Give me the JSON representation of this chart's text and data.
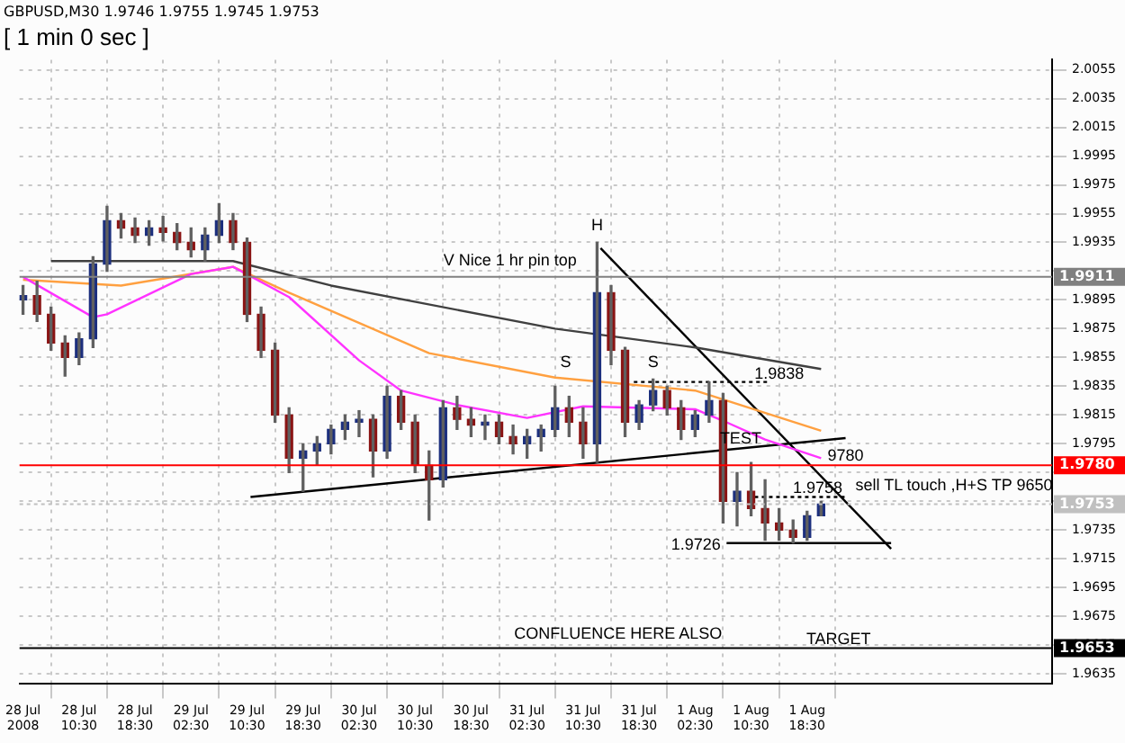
{
  "chart_data": {
    "type": "candlestick",
    "title": "GBPUSD,M30 1.9746 1.9755 1.9745 1.9753",
    "subtitle": "[ 1 min 0 sec ]",
    "x": [
      "2008-07-28T02:30",
      "2008-07-28T04:30",
      "2008-07-28T06:30",
      "2008-07-28T08:30",
      "2008-07-28T10:30",
      "2008-07-28T12:30",
      "2008-07-28T14:30",
      "2008-07-28T16:30",
      "2008-07-28T18:30",
      "2008-07-28T20:30",
      "2008-07-28T22:30",
      "2008-07-29T00:30",
      "2008-07-29T02:30",
      "2008-07-29T04:30",
      "2008-07-29T06:30",
      "2008-07-29T08:30",
      "2008-07-29T10:30",
      "2008-07-29T12:30",
      "2008-07-29T14:30",
      "2008-07-29T16:30",
      "2008-07-29T18:30",
      "2008-07-29T20:30",
      "2008-07-29T22:30",
      "2008-07-30T00:30",
      "2008-07-30T02:30",
      "2008-07-30T04:30",
      "2008-07-30T06:30",
      "2008-07-30T08:30",
      "2008-07-30T10:30",
      "2008-07-30T12:30",
      "2008-07-30T14:30",
      "2008-07-30T16:30",
      "2008-07-30T18:30",
      "2008-07-30T20:30",
      "2008-07-30T22:30",
      "2008-07-31T00:30",
      "2008-07-31T02:30",
      "2008-07-31T04:30",
      "2008-07-31T06:30",
      "2008-07-31T08:30",
      "2008-07-31T10:30",
      "2008-07-31T12:30",
      "2008-07-31T14:30",
      "2008-07-31T16:30",
      "2008-07-31T18:30",
      "2008-07-31T20:30",
      "2008-07-31T22:30",
      "2008-08-01T00:30",
      "2008-08-01T02:30",
      "2008-08-01T04:30",
      "2008-08-01T06:30",
      "2008-08-01T08:30",
      "2008-08-01T10:30",
      "2008-08-01T12:30",
      "2008-08-01T14:30",
      "2008-08-01T16:30",
      "2008-08-01T18:30",
      "2008-08-01T20:30"
    ],
    "ohlc": [
      [
        1.9895,
        1.9905,
        1.9885,
        1.9898
      ],
      [
        1.9898,
        1.9908,
        1.988,
        1.9885
      ],
      [
        1.9885,
        1.989,
        1.986,
        1.9865
      ],
      [
        1.9865,
        1.987,
        1.9842,
        1.9855
      ],
      [
        1.9855,
        1.9872,
        1.985,
        1.9868
      ],
      [
        1.9868,
        1.9925,
        1.9862,
        1.992
      ],
      [
        1.992,
        1.996,
        1.9915,
        1.995
      ],
      [
        1.995,
        1.9955,
        1.9938,
        1.9945
      ],
      [
        1.9945,
        1.9952,
        1.9935,
        1.994
      ],
      [
        1.994,
        1.995,
        1.9933,
        1.9945
      ],
      [
        1.9945,
        1.9953,
        1.9936,
        1.9942
      ],
      [
        1.9942,
        1.9948,
        1.993,
        1.9935
      ],
      [
        1.9935,
        1.9945,
        1.9925,
        1.993
      ],
      [
        1.993,
        1.9945,
        1.9922,
        1.994
      ],
      [
        1.994,
        1.9962,
        1.9935,
        1.995
      ],
      [
        1.995,
        1.9955,
        1.993,
        1.9935
      ],
      [
        1.9935,
        1.9938,
        1.988,
        1.9885
      ],
      [
        1.9885,
        1.989,
        1.9855,
        1.986
      ],
      [
        1.986,
        1.9865,
        1.981,
        1.9815
      ],
      [
        1.9815,
        1.982,
        1.9775,
        1.9785
      ],
      [
        1.9785,
        1.9795,
        1.9762,
        1.979
      ],
      [
        1.979,
        1.98,
        1.978,
        1.9795
      ],
      [
        1.9795,
        1.9808,
        1.9788,
        1.9805
      ],
      [
        1.9805,
        1.9815,
        1.9798,
        1.981
      ],
      [
        1.981,
        1.9818,
        1.98,
        1.9812
      ],
      [
        1.9812,
        1.9815,
        1.9772,
        1.979
      ],
      [
        1.979,
        1.9835,
        1.9785,
        1.9828
      ],
      [
        1.9828,
        1.9832,
        1.9805,
        1.981
      ],
      [
        1.981,
        1.9815,
        1.9775,
        1.978
      ],
      [
        1.978,
        1.979,
        1.9742,
        1.977
      ],
      [
        1.977,
        1.9825,
        1.9765,
        1.982
      ],
      [
        1.982,
        1.9828,
        1.9805,
        1.9812
      ],
      [
        1.9812,
        1.982,
        1.98,
        1.9808
      ],
      [
        1.9808,
        1.9815,
        1.9798,
        1.981
      ],
      [
        1.981,
        1.9815,
        1.9795,
        1.98
      ],
      [
        1.98,
        1.9808,
        1.9788,
        1.9795
      ],
      [
        1.9795,
        1.9805,
        1.9785,
        1.98
      ],
      [
        1.98,
        1.9808,
        1.979,
        1.9805
      ],
      [
        1.9805,
        1.9835,
        1.98,
        1.982
      ],
      [
        1.982,
        1.9828,
        1.98,
        1.981
      ],
      [
        1.981,
        1.982,
        1.9785,
        1.9795
      ],
      [
        1.9795,
        1.9935,
        1.9782,
        1.99
      ],
      [
        1.99,
        1.9905,
        1.985,
        1.986
      ],
      [
        1.986,
        1.9862,
        1.98,
        1.981
      ],
      [
        1.981,
        1.9825,
        1.9805,
        1.9822
      ],
      [
        1.9822,
        1.984,
        1.9818,
        1.9832
      ],
      [
        1.9832,
        1.9835,
        1.9815,
        1.982
      ],
      [
        1.982,
        1.9825,
        1.9798,
        1.9805
      ],
      [
        1.9805,
        1.9818,
        1.98,
        1.9815
      ],
      [
        1.9815,
        1.9838,
        1.981,
        1.9825
      ],
      [
        1.9825,
        1.983,
        1.974,
        1.9755
      ],
      [
        1.9755,
        1.9775,
        1.9738,
        1.9762
      ],
      [
        1.9762,
        1.9782,
        1.9745,
        1.975
      ],
      [
        1.975,
        1.977,
        1.9728,
        1.974
      ],
      [
        1.974,
        1.975,
        1.9728,
        1.9735
      ],
      [
        1.9735,
        1.9742,
        1.9726,
        1.973
      ],
      [
        1.973,
        1.9748,
        1.9728,
        1.9745
      ],
      [
        1.9745,
        1.9755,
        1.9745,
        1.9753
      ]
    ],
    "series": [
      {
        "type": "line",
        "color": "#ff33ff",
        "x": [
          "2008-07-28T02:30",
          "2008-07-28T12:30",
          "2008-07-28T14:30",
          "2008-07-29T02:30",
          "2008-07-29T08:30",
          "2008-07-29T16:30",
          "2008-07-30T02:30",
          "2008-07-30T08:30",
          "2008-07-30T16:30",
          "2008-07-31T02:30",
          "2008-07-31T10:30",
          "2008-08-01T02:30",
          "2008-08-01T06:30",
          "2008-08-01T12:30",
          "2008-08-01T20:30"
        ],
        "values": [
          1.9911,
          1.9883,
          1.9885,
          1.9913,
          1.9918,
          1.9897,
          1.9853,
          1.9832,
          1.9822,
          1.9813,
          1.9821,
          1.9819,
          1.9811,
          1.9798,
          1.9785
        ]
      },
      {
        "type": "line",
        "color": "#ffa040",
        "x": [
          "2008-07-28T02:30",
          "2008-07-28T16:30",
          "2008-07-29T08:30",
          "2008-07-29T16:30",
          "2008-07-30T12:30",
          "2008-07-31T06:30",
          "2008-08-01T02:30",
          "2008-08-01T20:30"
        ],
        "values": [
          1.9909,
          1.9905,
          1.9918,
          1.99,
          1.9858,
          1.9841,
          1.9832,
          1.9804
        ]
      },
      {
        "type": "line",
        "color": "#404040",
        "x": [
          "2008-07-28T06:30",
          "2008-07-29T08:30",
          "2008-07-29T22:30",
          "2008-07-31T06:30",
          "2008-08-01T02:30",
          "2008-08-01T20:30"
        ],
        "values": [
          1.9922,
          1.9922,
          1.9905,
          1.9875,
          1.9862,
          1.9847
        ]
      },
      {
        "type": "line",
        "color": "#000000",
        "x": [
          "2008-07-29T11:00",
          "2008-08-02T00:00"
        ],
        "values": [
          1.9758,
          1.9799
        ]
      },
      {
        "type": "line",
        "color": "#000000",
        "x": [
          "2008-07-31T13:00",
          "2008-08-02T06:30"
        ],
        "values": [
          1.9931,
          1.9722
        ]
      },
      {
        "type": "line",
        "color": "#000000",
        "x": [
          "2008-08-01T07:00",
          "2008-08-02T06:30"
        ],
        "values": [
          1.9726,
          1.9726
        ]
      },
      {
        "type": "line",
        "color": "#000000",
        "line_style": "dotted",
        "x": [
          "2008-07-31T17:45",
          "2008-08-01T13:15"
        ],
        "values": [
          1.9838,
          1.9838
        ]
      },
      {
        "type": "line",
        "color": "#000000",
        "line_style": "dotted",
        "x": [
          "2008-08-01T11:00",
          "2008-08-02T00:15"
        ],
        "values": [
          1.9758,
          1.9758
        ]
      }
    ],
    "xlim": [
      "2008-07-28T02:00",
      "2008-08-03T05:30"
    ],
    "xticks": [
      {
        "value": "2008-07-28T02:30",
        "label": "28 Jul 2008"
      },
      {
        "value": "2008-07-28T10:30",
        "label": "28 Jul 10:30"
      },
      {
        "value": "2008-07-28T18:30",
        "label": "28 Jul 18:30"
      },
      {
        "value": "2008-07-29T02:30",
        "label": "29 Jul 02:30"
      },
      {
        "value": "2008-07-29T10:30",
        "label": "29 Jul 10:30"
      },
      {
        "value": "2008-07-29T18:30",
        "label": "29 Jul 18:30"
      },
      {
        "value": "2008-07-30T02:30",
        "label": "30 Jul 02:30"
      },
      {
        "value": "2008-07-30T10:30",
        "label": "30 Jul 10:30"
      },
      {
        "value": "2008-07-30T18:30",
        "label": "30 Jul 18:30"
      },
      {
        "value": "2008-07-31T02:30",
        "label": "31 Jul 02:30"
      },
      {
        "value": "2008-07-31T10:30",
        "label": "31 Jul 10:30"
      },
      {
        "value": "2008-07-31T18:30",
        "label": "31 Jul 18:30"
      },
      {
        "value": "2008-08-01T02:30",
        "label": "1 Aug 02:30"
      },
      {
        "value": "2008-08-01T10:30",
        "label": "1 Aug 10:30"
      },
      {
        "value": "2008-08-01T18:30",
        "label": "1 Aug 18:30"
      }
    ],
    "ylim": [
      1.9628,
      2.0062
    ],
    "yticks": [
      1.9635,
      1.9655,
      1.9675,
      1.9695,
      1.9715,
      1.9735,
      {
        "value": 1.9755,
        "label": null
      },
      {
        "value": 1.9775,
        "label": null
      },
      1.9795,
      1.9815,
      1.9835,
      1.9855,
      1.9875,
      1.9895,
      {
        "value": 1.9915,
        "label": null
      },
      1.9935,
      1.9955,
      1.9975,
      1.9995,
      2.0015,
      2.0035,
      2.0055
    ],
    "grid": true,
    "ref_lines": [
      {
        "axis": "y",
        "value": 1.9911,
        "label": "1.9911",
        "color": "#808080"
      },
      {
        "axis": "y",
        "value": 1.978,
        "label": "1.9780",
        "color": "#ff0000"
      },
      {
        "axis": "y",
        "value": 1.9753,
        "label": "1.9753",
        "color": "#c0c0c0",
        "line_style": "dotted"
      },
      {
        "axis": "y",
        "value": 1.9653,
        "label": "1.9653",
        "color": "#000000"
      }
    ],
    "annotations": [
      {
        "text": "H",
        "x": "2008-07-31T12:30",
        "y": 1.9941
      },
      "V Nice 1 hr pin top",
      {
        "text": "S",
        "x": "2008-07-31T08:00",
        "y": 1.9846
      },
      {
        "text": "S",
        "x": "2008-07-31T20:30",
        "y": 1.9846
      },
      {
        "text": "1.9838",
        "x": "2008-08-01T14:30",
        "y": 1.9838
      },
      {
        "text": "TEST",
        "x": "2008-08-01T09:00",
        "y": 1.9793
      },
      {
        "text": "9780",
        "x": "2008-08-02T00:00",
        "y": 1.9781
      },
      {
        "text": "1.9758",
        "x": "2008-08-01T20:00",
        "y": 1.9758
      },
      "sell TL touch ,H+S TP 9650",
      "1.9726",
      {
        "text": "CONFLUENCE HERE ALSO",
        "x": "2008-07-31T15:30",
        "y": 1.9657
      },
      {
        "text": "TARGET",
        "x": "2008-08-01T23:00",
        "y": 1.9653
      }
    ]
  }
}
